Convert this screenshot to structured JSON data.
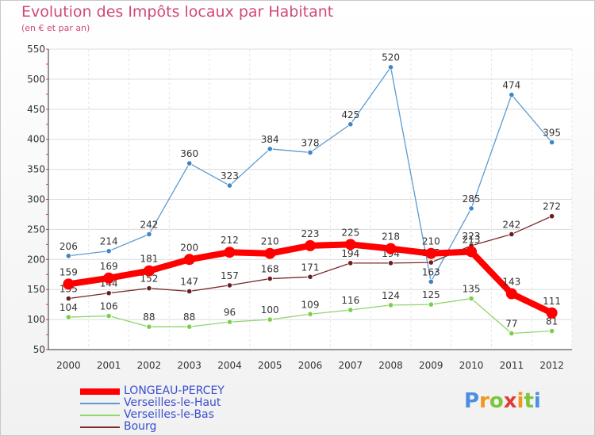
{
  "header": {
    "title": "Evolution des Impôts locaux par Habitant",
    "subtitle": "(en € et par an)"
  },
  "chart_data": {
    "type": "line",
    "title": "Evolution des Impôts locaux par Habitant",
    "subtitle": "(en € et par an)",
    "xlabel": "",
    "ylabel": "",
    "ylim": [
      50,
      550
    ],
    "yticks": [
      "50",
      "100",
      "150",
      "200",
      "250",
      "300",
      "350",
      "400",
      "450",
      "500",
      "550"
    ],
    "categories": [
      "2000",
      "2001",
      "2002",
      "2003",
      "2004",
      "2005",
      "2006",
      "2007",
      "2008",
      "2009",
      "2010",
      "2011",
      "2012"
    ],
    "grid": true,
    "series": [
      {
        "name": "Verseilles-le-Haut",
        "color": "#5b9bd0",
        "dot": "#3f86c6",
        "values": [
          206,
          214,
          242,
          360,
          323,
          384,
          378,
          425,
          520,
          163,
          285,
          474,
          395
        ]
      },
      {
        "name": "Verseilles-le-Bas",
        "color": "#8fd66b",
        "dot": "#7bcf4a",
        "values": [
          104,
          106,
          88,
          88,
          96,
          100,
          109,
          116,
          124,
          125,
          135,
          77,
          81
        ]
      },
      {
        "name": "Bourg",
        "color": "#7a2b2b",
        "dot": "#6b1e1e",
        "values": [
          135,
          144,
          152,
          147,
          157,
          168,
          171,
          194,
          194,
          195,
          223,
          242,
          272
        ]
      },
      {
        "name": "LONGEAU-PERCEY",
        "color": "#ff0000",
        "dot": "#ff0000",
        "values": [
          159,
          169,
          181,
          200,
          212,
          210,
          223,
          225,
          218,
          210,
          213,
          143,
          111
        ]
      }
    ]
  },
  "legend": [
    {
      "label": "LONGEAU-PERCEY",
      "color": "#ff0000"
    },
    {
      "label": "Verseilles-le-Haut",
      "color": "#5b9bd0"
    },
    {
      "label": "Verseilles-le-Bas",
      "color": "#8fd66b"
    },
    {
      "label": "Bourg",
      "color": "#7a2b2b"
    }
  ],
  "logo": {
    "text": "Proxiti",
    "colors": [
      "#4a8fe0",
      "#f0961e",
      "#7cc63c",
      "#e23a3a",
      "#f0961e",
      "#7cc63c",
      "#4a8fe0"
    ]
  }
}
